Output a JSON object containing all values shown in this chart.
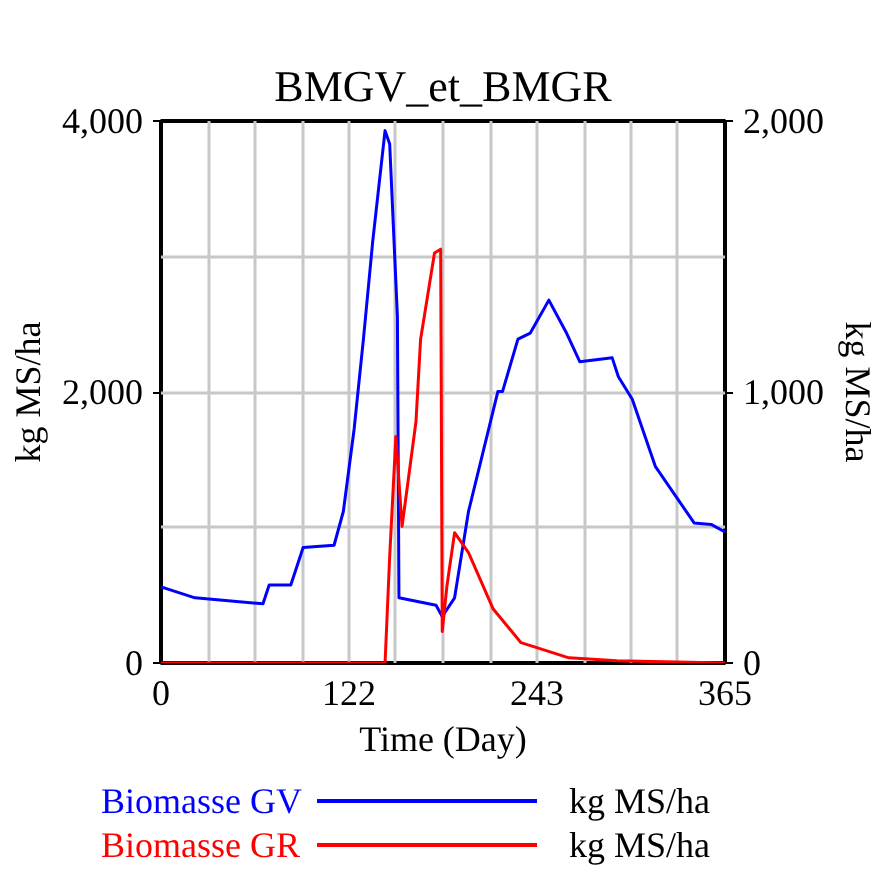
{
  "chart_data": {
    "type": "line",
    "title": "BMGV_et_BMGR",
    "xlabel": "Time (Day)",
    "ylabel": "kg MS/ha",
    "y2label": "kg MS/ha",
    "xlim": [
      0,
      365
    ],
    "xticks": [
      0,
      {
        "value": 30.42,
        "label": null
      },
      {
        "value": 60.83,
        "label": null
      },
      {
        "value": 91.25,
        "label": null
      },
      {
        "value": 121.67,
        "label": "122"
      },
      {
        "value": 152.08,
        "label": null
      },
      {
        "value": 182.5,
        "label": null
      },
      {
        "value": 212.92,
        "label": null
      },
      {
        "value": 243.33,
        "label": "243"
      },
      {
        "value": 273.75,
        "label": null
      },
      {
        "value": 304.17,
        "label": null
      },
      {
        "value": 334.58,
        "label": null
      },
      365
    ],
    "ylim": [
      0,
      4000
    ],
    "yticks": [
      {
        "value": 0,
        "label": "0"
      },
      {
        "value": 1000,
        "label": null
      },
      {
        "value": 2000,
        "label": "2,000"
      },
      {
        "value": 3000,
        "label": null
      },
      {
        "value": 4000,
        "label": "4,000"
      }
    ],
    "y2lim": [
      0,
      2000
    ],
    "y2ticks": [
      {
        "value": 0,
        "label": "0"
      },
      {
        "value": 1000,
        "label": "1,000"
      },
      {
        "value": 2000,
        "label": "2,000"
      }
    ],
    "grid": true,
    "legend": "bottom",
    "series": [
      {
        "name": "Biomasse GV",
        "color": "#0000ff",
        "x": [
          0,
          2.5,
          22,
          66,
          70,
          84,
          92,
          112,
          118,
          125,
          131,
          137,
          145,
          148,
          153,
          154,
          178,
          182,
          190,
          199,
          218,
          221,
          231,
          239,
          251,
          262,
          271,
          292,
          296,
          305,
          320,
          345,
          356,
          365
        ],
        "values": [
          560,
          553,
          481,
          437,
          575,
          575,
          852,
          869,
          1118,
          1727,
          2390,
          3109,
          3929,
          3830,
          2556,
          481,
          426,
          343,
          481,
          1118,
          2003,
          2003,
          2390,
          2435,
          2678,
          2445,
          2224,
          2252,
          2113,
          1947,
          1449,
          1034,
          1023,
          968
        ]
      },
      {
        "name": "Biomasse GR",
        "color": "#ff0000",
        "axis": "y2",
        "x": [
          0,
          145,
          148,
          152,
          156,
          165,
          168,
          177,
          181,
          182,
          185,
          190,
          199,
          215,
          233,
          264,
          295,
          365
        ],
        "values": [
          0,
          0,
          393,
          836,
          504,
          890,
          1195,
          1513,
          1527,
          116,
          282,
          481,
          407,
          199,
          75,
          19,
          8,
          0
        ]
      }
    ]
  }
}
